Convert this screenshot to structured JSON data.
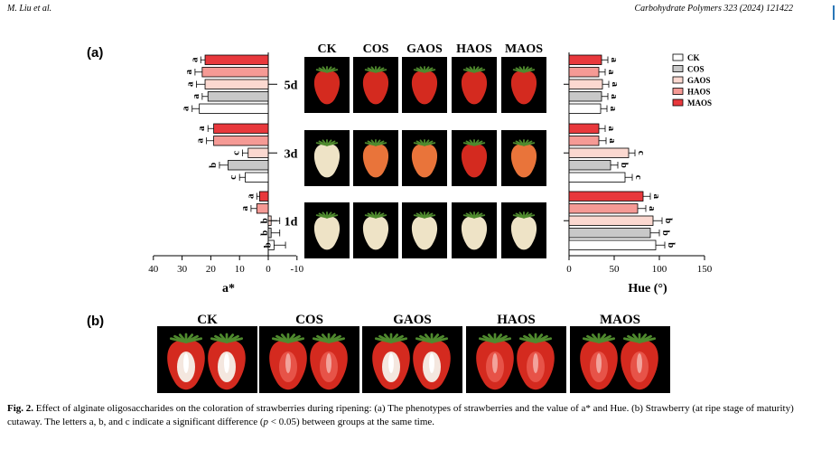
{
  "header": {
    "authors": "M. Liu et al.",
    "journal": "Carbohydrate Polymers 323 (2024) 121422"
  },
  "panel_a_label": "(a)",
  "panel_b_label": "(b)",
  "treatments": [
    "CK",
    "COS",
    "GAOS",
    "HAOS",
    "MAOS"
  ],
  "days": [
    "5d",
    "3d",
    "1d"
  ],
  "legend": [
    "CK",
    "COS",
    "GAOS",
    "HAOS",
    "MAOS"
  ],
  "colors": {
    "CK": "#ffffff",
    "COS": "#c8c8c8",
    "GAOS": "#fbd8d0",
    "HAOS": "#f59a95",
    "MAOS": "#e8383c",
    "bar_stroke": "#000000",
    "photo_bg": "#000000",
    "berry_red": "#d42a1f",
    "berry_orange": "#e9743a",
    "berry_white": "#eee3c6",
    "leaf": "#4f8a2e"
  },
  "chart_data": [
    {
      "type": "bar",
      "orientation": "horizontal",
      "title": "",
      "xlabel": "a*",
      "xlim": [
        -10,
        40
      ],
      "x_reversed": true,
      "ticks": [
        "40",
        "30",
        "20",
        "10",
        "0",
        "-10"
      ],
      "groups": [
        {
          "day": "5d",
          "values": {
            "CK": 24,
            "COS": 21,
            "GAOS": 22,
            "HAOS": 23,
            "MAOS": 22
          },
          "errors": {
            "CK": 2.5,
            "COS": 2,
            "GAOS": 3,
            "HAOS": 2.5,
            "MAOS": 1.5
          },
          "letters": {
            "CK": "a",
            "COS": "a",
            "GAOS": "a",
            "HAOS": "a",
            "MAOS": "a"
          }
        },
        {
          "day": "3d",
          "values": {
            "CK": 8,
            "COS": 14,
            "GAOS": 7,
            "HAOS": 19,
            "MAOS": 19
          },
          "errors": {
            "CK": 2,
            "COS": 3,
            "GAOS": 2,
            "HAOS": 2.5,
            "MAOS": 2
          },
          "letters": {
            "CK": "c",
            "COS": "b",
            "GAOS": "c",
            "HAOS": "a",
            "MAOS": "a"
          }
        },
        {
          "day": "1d",
          "values": {
            "CK": -2,
            "COS": -1,
            "GAOS": -1,
            "HAOS": 4,
            "MAOS": 3
          },
          "errors": {
            "CK": 4,
            "COS": 3,
            "GAOS": 3,
            "HAOS": 2,
            "MAOS": 1
          },
          "letters": {
            "CK": "b",
            "COS": "b",
            "GAOS": "b",
            "HAOS": "a",
            "MAOS": "a"
          }
        }
      ]
    },
    {
      "type": "bar",
      "orientation": "horizontal",
      "title": "",
      "xlabel": "Hue (°)",
      "xlim": [
        0,
        150
      ],
      "ticks": [
        "0",
        "50",
        "100",
        "150"
      ],
      "groups": [
        {
          "day": "5d",
          "values": {
            "CK": 35,
            "COS": 36,
            "GAOS": 37,
            "HAOS": 33,
            "MAOS": 36
          },
          "errors": {
            "CK": 7,
            "COS": 7,
            "GAOS": 7,
            "HAOS": 7,
            "MAOS": 7
          },
          "letters": {
            "CK": "a",
            "COS": "a",
            "GAOS": "a",
            "HAOS": "a",
            "MAOS": "a"
          }
        },
        {
          "day": "3d",
          "values": {
            "CK": 62,
            "COS": 46,
            "GAOS": 66,
            "HAOS": 33,
            "MAOS": 33
          },
          "errors": {
            "CK": 8,
            "COS": 8,
            "GAOS": 7,
            "HAOS": 8,
            "MAOS": 7
          },
          "letters": {
            "CK": "c",
            "COS": "b",
            "GAOS": "c",
            "HAOS": "a",
            "MAOS": "a"
          }
        },
        {
          "day": "1d",
          "values": {
            "CK": 96,
            "COS": 90,
            "GAOS": 93,
            "HAOS": 76,
            "MAOS": 82
          },
          "errors": {
            "CK": 10,
            "COS": 10,
            "GAOS": 10,
            "HAOS": 9,
            "MAOS": 8
          },
          "letters": {
            "CK": "b",
            "COS": "b",
            "GAOS": "b",
            "HAOS": "a",
            "MAOS": "a"
          }
        }
      ]
    }
  ],
  "photos_a": [
    {
      "day": "5d",
      "fruit": [
        "red",
        "red",
        "red",
        "red",
        "red"
      ]
    },
    {
      "day": "3d",
      "fruit": [
        "white",
        "orange",
        "orange",
        "red",
        "orange"
      ]
    },
    {
      "day": "1d",
      "fruit": [
        "white",
        "white",
        "white",
        "white",
        "white"
      ]
    }
  ],
  "photos_b": [
    {
      "name": "CK",
      "flesh": "white"
    },
    {
      "name": "COS",
      "flesh": "red"
    },
    {
      "name": "GAOS",
      "flesh": "white"
    },
    {
      "name": "HAOS",
      "flesh": "red"
    },
    {
      "name": "MAOS",
      "flesh": "red"
    }
  ],
  "caption": {
    "label": "Fig. 2.",
    "part1": "Effect of alginate oligosaccharides on the coloration of strawberries during ripening: (a) The phenotypes of strawberries and the value of a* and Hue. (b) Strawberry (at ripe stage of maturity) cutaway. The letters a, b, and c indicate a significant difference (",
    "pval": "p",
    "part2": " < 0.05) between groups at the same time."
  }
}
